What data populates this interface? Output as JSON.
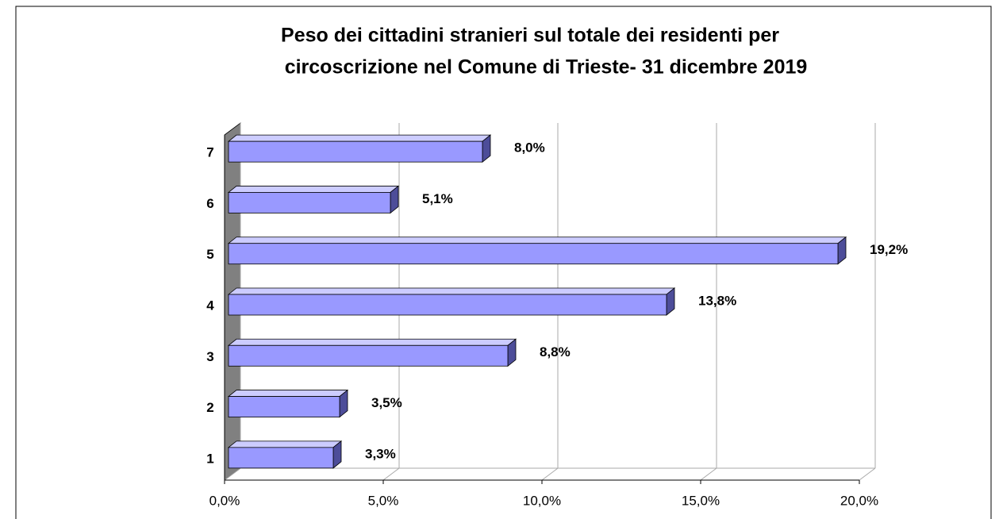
{
  "chart_data": {
    "type": "bar3d_horizontal",
    "title": [
      "Peso dei cittadini stranieri sul totale dei residenti per",
      "circoscrizione nel Comune di Trieste- 31 dicembre 2019"
    ],
    "categories": [
      "1",
      "2",
      "3",
      "4",
      "5",
      "6",
      "7"
    ],
    "values": [
      3.3,
      3.5,
      8.8,
      13.8,
      19.2,
      5.1,
      8.0
    ],
    "value_labels": [
      "3,3%",
      "3,5%",
      "8,8%",
      "13,8%",
      "19,2%",
      "5,1%",
      "8,0%"
    ],
    "color": "#9999ff",
    "xlim": [
      0,
      20
    ],
    "xticks": [
      {
        "value": 0,
        "label": "0,0%"
      },
      {
        "value": 5,
        "label": "5,0%"
      },
      {
        "value": 10,
        "label": "10,0%"
      },
      {
        "value": 15,
        "label": "15,0%"
      },
      {
        "value": 20,
        "label": "20,0%"
      }
    ],
    "grid": true
  }
}
